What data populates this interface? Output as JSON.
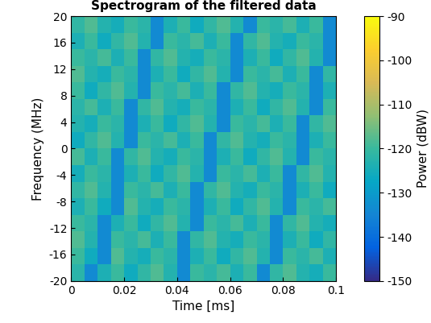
{
  "chart_data": {
    "type": "heatmap",
    "title": "Spectrogram of the filtered data",
    "x_label": "Time [ms]",
    "y_label": "Frequency (MHz)",
    "x": [
      0,
      0.005,
      0.01,
      0.015,
      0.02,
      0.025,
      0.03,
      0.035,
      0.04,
      0.045,
      0.05,
      0.055,
      0.06,
      0.065,
      0.07,
      0.075,
      0.08,
      0.085,
      0.09,
      0.095,
      0.1
    ],
    "y": [
      -20,
      -17.5,
      -15,
      -12.5,
      -10,
      -7.5,
      -5,
      -2.5,
      0,
      2.5,
      5,
      7.5,
      10,
      12.5,
      15,
      17.5,
      20
    ],
    "xlim": [
      0,
      0.1
    ],
    "xticks": [
      0,
      0.02,
      0.04,
      0.06,
      0.08,
      0.1
    ],
    "ylim": [
      -20,
      20
    ],
    "yticks": [
      -20,
      -16,
      -12,
      -8,
      -4,
      0,
      4,
      8,
      12,
      16,
      20
    ],
    "cells": [
      [
        -122,
        -134,
        -124,
        -120,
        -126,
        -121,
        -118,
        -123,
        -134,
        -120,
        -122,
        -119,
        -124,
        -120,
        -134,
        -121,
        -118,
        -123,
        -125,
        -120
      ],
      [
        -120,
        -126,
        -134,
        -118,
        -123,
        -125,
        -120,
        -122,
        -134,
        -124,
        -120,
        -126,
        -121,
        -118,
        -123,
        -134,
        -120,
        -122,
        -119,
        -124
      ],
      [
        -118,
        -123,
        -134,
        -120,
        -122,
        -119,
        -124,
        -120,
        -134,
        -121,
        -118,
        -123,
        -125,
        -120,
        -122,
        -134,
        -124,
        -120,
        -126,
        -121
      ],
      [
        -120,
        -122,
        -134,
        -124,
        -120,
        -126,
        -121,
        -118,
        -123,
        -134,
        -120,
        -122,
        -119,
        -124,
        -120,
        -134,
        -121,
        -118,
        -123,
        -125
      ],
      [
        -124,
        -120,
        -126,
        -134,
        -118,
        -123,
        -125,
        -120,
        -122,
        -134,
        -124,
        -120,
        -126,
        -121,
        -118,
        -123,
        -134,
        -120,
        -122,
        -119
      ],
      [
        -121,
        -118,
        -123,
        -134,
        -120,
        -122,
        -119,
        -124,
        -120,
        -134,
        -121,
        -118,
        -123,
        -125,
        -120,
        -122,
        -134,
        -124,
        -120,
        -126
      ],
      [
        -125,
        -120,
        -122,
        -134,
        -124,
        -120,
        -126,
        -121,
        -118,
        -123,
        -134,
        -120,
        -122,
        -119,
        -124,
        -120,
        -134,
        -121,
        -118,
        -123
      ],
      [
        -119,
        -124,
        -120,
        -134,
        -121,
        -118,
        -123,
        -125,
        -120,
        -122,
        -134,
        -124,
        -120,
        -126,
        -121,
        -118,
        -123,
        -134,
        -120,
        -122
      ],
      [
        -126,
        -121,
        -118,
        -123,
        -134,
        -120,
        -122,
        -119,
        -124,
        -120,
        -134,
        -121,
        -118,
        -123,
        -125,
        -120,
        -122,
        -134,
        -124,
        -120
      ],
      [
        -123,
        -125,
        -120,
        -122,
        -134,
        -124,
        -120,
        -126,
        -121,
        -118,
        -123,
        -134,
        -120,
        -122,
        -119,
        -124,
        -120,
        -134,
        -121,
        -118
      ],
      [
        -122,
        -119,
        -124,
        -120,
        -134,
        -121,
        -118,
        -123,
        -125,
        -120,
        -122,
        -134,
        -124,
        -120,
        -126,
        -121,
        -118,
        -123,
        -134,
        -120
      ],
      [
        -120,
        -126,
        -121,
        -118,
        -123,
        -134,
        -120,
        -122,
        -119,
        -124,
        -120,
        -134,
        -121,
        -118,
        -123,
        -125,
        -120,
        -122,
        -134,
        -124
      ],
      [
        -118,
        -123,
        -125,
        -120,
        -122,
        -134,
        -124,
        -120,
        -126,
        -121,
        -118,
        -123,
        -134,
        -120,
        -122,
        -119,
        -124,
        -120,
        -134,
        -121
      ],
      [
        -120,
        -122,
        -119,
        -124,
        -120,
        -134,
        -121,
        -118,
        -123,
        -125,
        -120,
        -122,
        -134,
        -124,
        -120,
        -126,
        -121,
        -118,
        -123,
        -134
      ],
      [
        -124,
        -120,
        -126,
        -121,
        -118,
        -123,
        -134,
        -120,
        -122,
        -119,
        -124,
        -120,
        -134,
        -121,
        -118,
        -123,
        -125,
        -120,
        -122,
        -134
      ],
      [
        -121,
        -118,
        -123,
        -125,
        -120,
        -122,
        -134,
        -124,
        -120,
        -126,
        -121,
        -118,
        -123,
        -134,
        -120,
        -122,
        -119,
        -124,
        -120,
        -134
      ]
    ],
    "colorbar": {
      "label": "Power (dBW)",
      "range": [
        -150,
        -90
      ],
      "ticks": [
        -150,
        -140,
        -130,
        -120,
        -110,
        -100,
        -90
      ]
    }
  }
}
